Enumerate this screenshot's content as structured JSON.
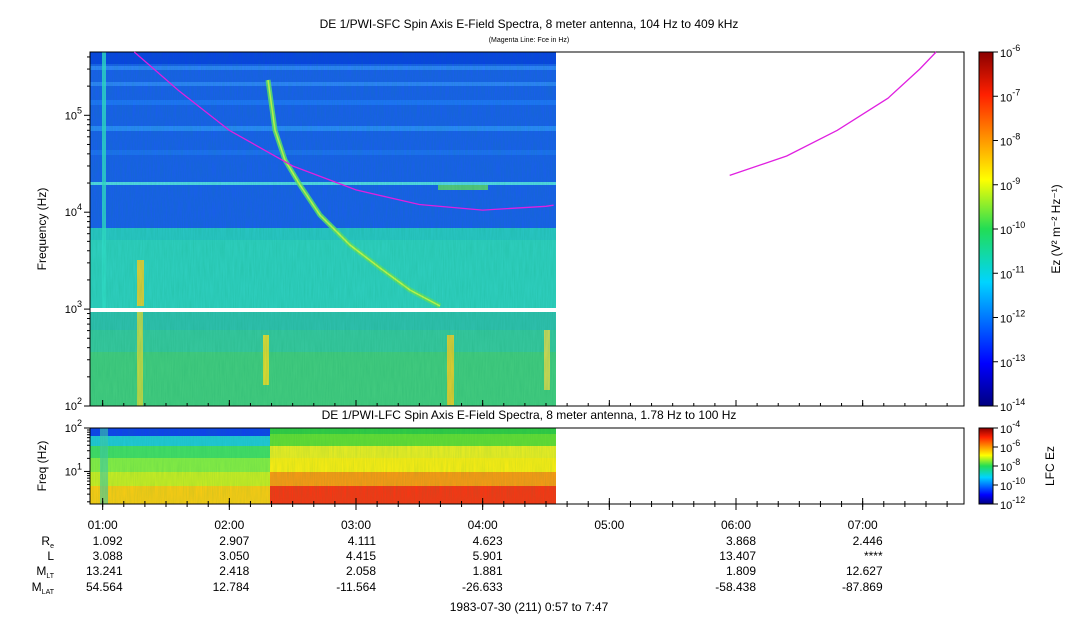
{
  "chart_data": [
    {
      "type": "heatmap",
      "title": "DE 1/PWI-SFC  Spin Axis E-Field Spectra, 8 meter antenna, 104 Hz to 409 kHz",
      "subtitle": "(Magenta Line: Fce in Hz)",
      "ylabel": "Frequency (Hz)",
      "y_scale": "log",
      "ylim": [
        100,
        450000
      ],
      "ytick_bases": [
        "10",
        "10",
        "10",
        "10"
      ],
      "ytick_exps": [
        "2",
        "3",
        "4",
        "5"
      ],
      "xlim_hours": [
        0.9,
        7.8
      ],
      "data_end_hours": 4.58,
      "colorbar": {
        "label": "Ez (V² m⁻² Hz⁻¹)",
        "scale": "log",
        "range": [
          1e-14,
          1e-06
        ],
        "tick_base": "10",
        "tick_exps": [
          "-14",
          "-13",
          "-12",
          "-11",
          "-10",
          "-9",
          "-8",
          "-7",
          "-6"
        ]
      },
      "overlay_line": {
        "name": "Fce in Hz",
        "color": "#e020e0",
        "segments": [
          [
            [
              1.25,
              450000
            ],
            [
              1.6,
              180000
            ],
            [
              2.0,
              70000
            ],
            [
              2.5,
              30000
            ],
            [
              3.0,
              17000
            ],
            [
              3.5,
              12000
            ],
            [
              4.0,
              10500
            ],
            [
              4.5,
              11500
            ],
            [
              4.56,
              11800
            ]
          ],
          [
            [
              5.95,
              24000
            ],
            [
              6.4,
              38000
            ],
            [
              6.8,
              70000
            ],
            [
              7.2,
              150000
            ],
            [
              7.45,
              300000
            ],
            [
              7.58,
              450000
            ]
          ]
        ]
      }
    },
    {
      "type": "heatmap",
      "title": "DE 1/PWI-LFC  Spin Axis E-Field Spectra, 8 meter antenna, 1.78 Hz to 100 Hz",
      "ylabel": "Freq (Hz)",
      "y_scale": "log",
      "ylim": [
        1.78,
        100
      ],
      "ytick_labels": [
        "10¹",
        "10²"
      ],
      "ytick_bases": [
        "10",
        "10"
      ],
      "ytick_exps": [
        "1",
        "2"
      ],
      "xlim_hours": [
        0.9,
        7.8
      ],
      "data_end_hours": 4.58,
      "colorbar": {
        "label": "LFC Ez",
        "scale": "log",
        "range": [
          1e-12,
          0.0001
        ],
        "tick_base": "10",
        "tick_exps": [
          "-12",
          "-10",
          "-8",
          "-6",
          "-4"
        ]
      }
    }
  ],
  "x_axis": {
    "tick_labels": [
      "01:00",
      "02:00",
      "03:00",
      "04:00",
      "05:00",
      "06:00",
      "07:00"
    ],
    "tick_hours": [
      1,
      2,
      3,
      4,
      5,
      6,
      7
    ]
  },
  "ephemeris": {
    "rows": [
      {
        "label": "R",
        "sub": "e",
        "values": [
          "1.092",
          "2.907",
          "4.111",
          "4.623",
          "",
          "3.868",
          "2.446"
        ]
      },
      {
        "label": "L",
        "sub": "",
        "values": [
          "3.088",
          "3.050",
          "4.415",
          "5.901",
          "",
          "13.407",
          "****"
        ]
      },
      {
        "label": "M",
        "sub": "LT",
        "values": [
          "13.241",
          "2.418",
          "2.058",
          "1.881",
          "",
          "1.809",
          "12.627"
        ]
      },
      {
        "label": "M",
        "sub": "LAT",
        "values": [
          "54.564",
          "12.784",
          "-11.564",
          "-26.633",
          "",
          "-58.438",
          "-87.869"
        ]
      }
    ],
    "footer": "1983-07-30 (211) 0:57 to 7:47"
  }
}
